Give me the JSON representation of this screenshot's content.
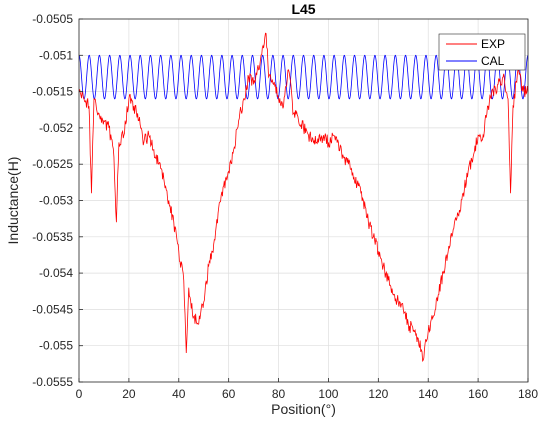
{
  "chart_data": {
    "type": "line",
    "title": "L45",
    "xlabel": "Position(°)",
    "ylabel": "Inductance(H)",
    "xlim": [
      0,
      180
    ],
    "ylim": [
      -0.0555,
      -0.0505
    ],
    "x_ticks": [
      0,
      20,
      40,
      60,
      80,
      100,
      120,
      140,
      160,
      180
    ],
    "y_ticks": [
      -0.0555,
      -0.055,
      -0.0545,
      -0.054,
      -0.0535,
      -0.053,
      -0.0525,
      -0.052,
      -0.0515,
      -0.051,
      -0.0505
    ],
    "x_tick_labels": [
      "0",
      "20",
      "40",
      "60",
      "80",
      "100",
      "120",
      "140",
      "160",
      "180"
    ],
    "y_tick_labels": [
      "-0.0555",
      "-0.055",
      "-0.0545",
      "-0.054",
      "-0.0535",
      "-0.053",
      "-0.0525",
      "-0.052",
      "-0.0515",
      "-0.051",
      "-0.0505"
    ],
    "grid": true,
    "legend_position": "top-right",
    "series": [
      {
        "name": "EXP",
        "color": "#ff0000",
        "x": [
          0,
          2,
          4,
          5,
          6,
          8,
          10,
          12,
          14,
          15,
          16,
          18,
          20,
          22,
          24,
          26,
          28,
          30,
          32,
          34,
          36,
          38,
          40,
          42,
          43,
          44,
          46,
          48,
          50,
          52,
          54,
          56,
          58,
          60,
          62,
          64,
          66,
          68,
          70,
          72,
          74,
          75,
          76,
          78,
          80,
          82,
          84,
          86,
          88,
          90,
          92,
          94,
          96,
          98,
          100,
          102,
          104,
          106,
          108,
          110,
          112,
          114,
          116,
          118,
          120,
          122,
          124,
          126,
          128,
          130,
          132,
          134,
          136,
          138,
          140,
          142,
          144,
          146,
          148,
          150,
          152,
          154,
          156,
          158,
          160,
          162,
          164,
          166,
          168,
          170,
          172,
          173,
          174,
          176,
          178,
          180
        ],
        "y": [
          -0.0515,
          -0.0516,
          -0.0517,
          -0.0529,
          -0.0516,
          -0.0518,
          -0.0519,
          -0.052,
          -0.0524,
          -0.0533,
          -0.0522,
          -0.0521,
          -0.0516,
          -0.0517,
          -0.0519,
          -0.0522,
          -0.0521,
          -0.0523,
          -0.0525,
          -0.0527,
          -0.053,
          -0.0533,
          -0.0537,
          -0.0541,
          -0.0551,
          -0.0542,
          -0.0546,
          -0.0547,
          -0.0544,
          -0.0539,
          -0.0536,
          -0.0531,
          -0.0528,
          -0.0526,
          -0.0523,
          -0.0519,
          -0.0516,
          -0.0513,
          -0.0514,
          -0.0512,
          -0.0509,
          -0.0507,
          -0.0513,
          -0.0514,
          -0.0516,
          -0.0517,
          -0.0512,
          -0.0518,
          -0.0519,
          -0.052,
          -0.0521,
          -0.0522,
          -0.0522,
          -0.0521,
          -0.0522,
          -0.0521,
          -0.0522,
          -0.0524,
          -0.0525,
          -0.0527,
          -0.0528,
          -0.053,
          -0.0533,
          -0.0535,
          -0.0537,
          -0.0539,
          -0.0541,
          -0.0543,
          -0.0544,
          -0.0545,
          -0.0547,
          -0.0548,
          -0.0549,
          -0.0552,
          -0.0548,
          -0.0546,
          -0.0543,
          -0.054,
          -0.0537,
          -0.0534,
          -0.0532,
          -0.0529,
          -0.0526,
          -0.0524,
          -0.0521,
          -0.0521,
          -0.0517,
          -0.0515,
          -0.0514,
          -0.0513,
          -0.0516,
          -0.0529,
          -0.0517,
          -0.0512,
          -0.0515,
          -0.0515
        ]
      },
      {
        "name": "CAL",
        "color": "#0000ff",
        "periods": 44,
        "max": -0.051,
        "min": -0.0516
      }
    ]
  }
}
